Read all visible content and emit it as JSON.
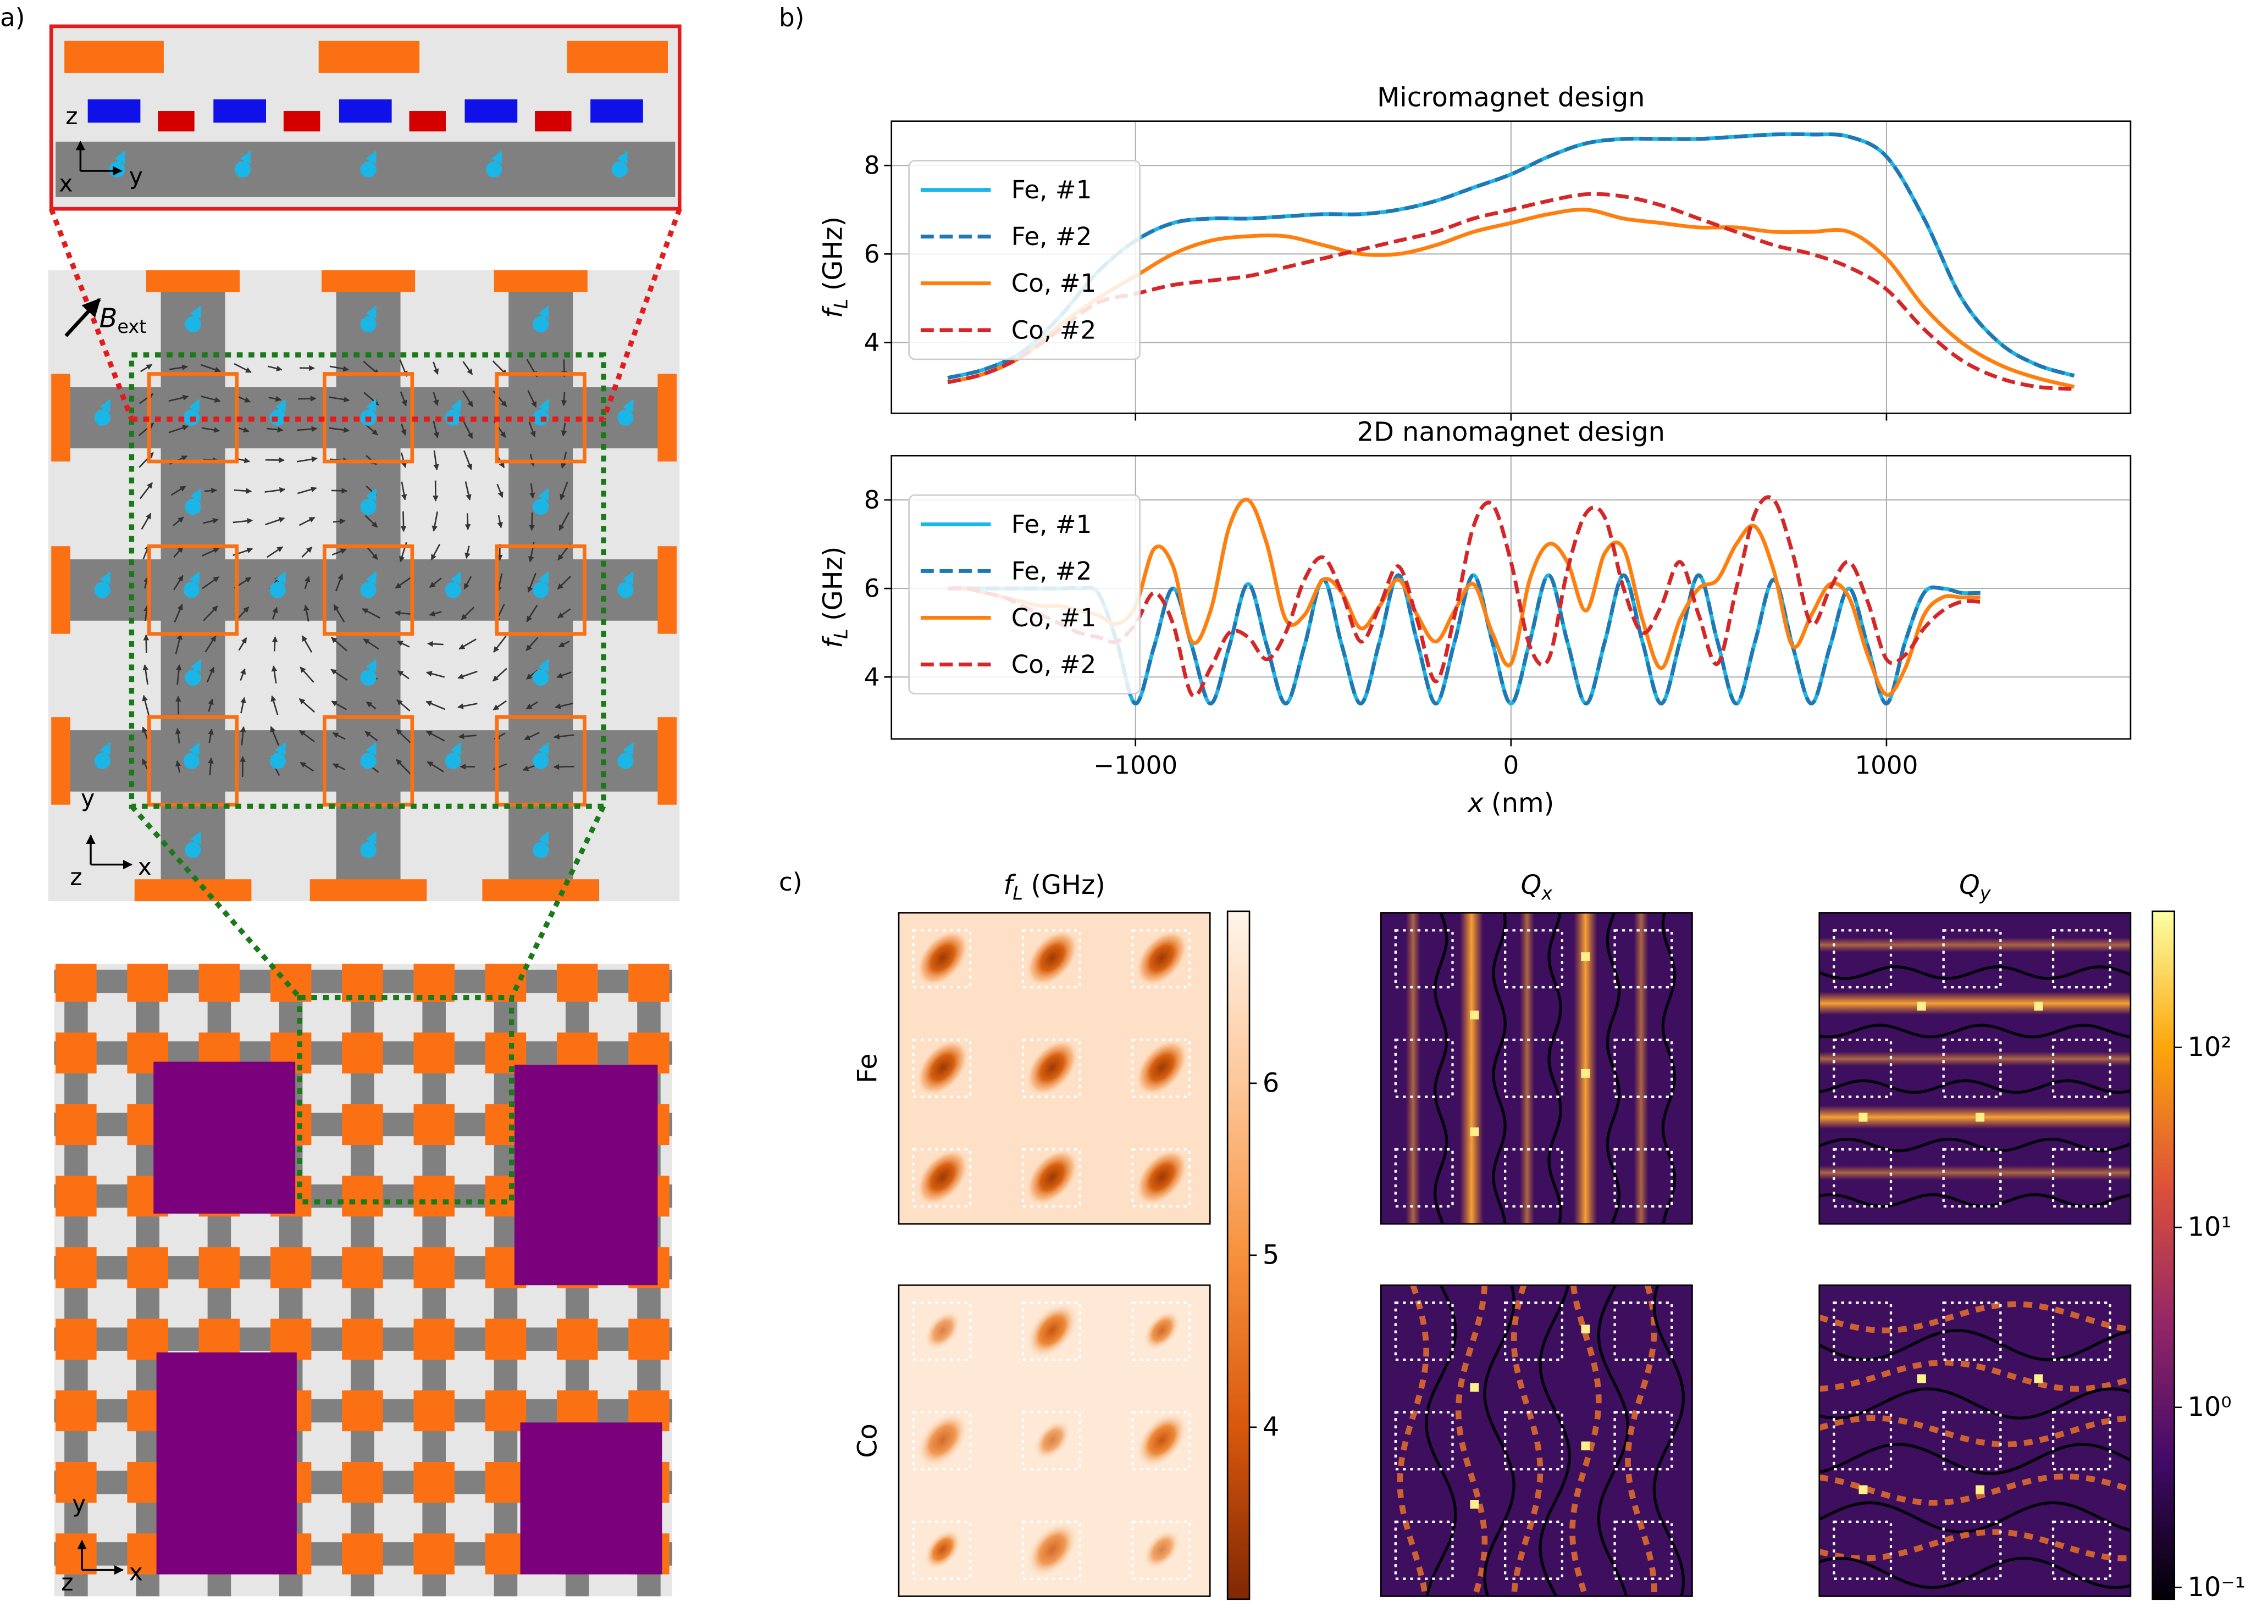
{
  "panel_labels": [
    "a)",
    "b)",
    "c)"
  ],
  "panel_a": {
    "inset_axes": [
      "z",
      "x",
      "y"
    ],
    "field": {
      "symbol": "B",
      "subscript": "ext"
    },
    "middle_axes": [
      "y",
      "z",
      "x"
    ],
    "bottom_axes": [
      "y",
      "z",
      "x"
    ]
  },
  "chart_data": [
    {
      "type": "line",
      "title": "Micromagnet design",
      "ylabel": {
        "symbol": "f",
        "subscript": "L",
        "unit": "(GHz)"
      },
      "x": [
        -1500,
        -1400,
        -1300,
        -1200,
        -1100,
        -1000,
        -900,
        -800,
        -700,
        -600,
        -500,
        -400,
        -300,
        -200,
        -100,
        0,
        100,
        200,
        300,
        400,
        500,
        600,
        700,
        800,
        900,
        1000,
        1100,
        1200,
        1300,
        1400,
        1500
      ],
      "series": [
        {
          "name": "Fe, #1",
          "color": "#1ab6e8",
          "style": "solid",
          "values": [
            3.2,
            3.4,
            3.8,
            4.6,
            5.6,
            6.3,
            6.7,
            6.8,
            6.8,
            6.85,
            6.9,
            6.9,
            7.0,
            7.2,
            7.5,
            7.8,
            8.2,
            8.5,
            8.6,
            8.6,
            8.6,
            8.65,
            8.7,
            8.7,
            8.65,
            8.2,
            6.8,
            5.0,
            4.0,
            3.5,
            3.25
          ]
        },
        {
          "name": "Fe, #2",
          "color": "#1f77b4",
          "style": "dashed",
          "values": [
            3.2,
            3.4,
            3.8,
            4.6,
            5.6,
            6.3,
            6.7,
            6.8,
            6.8,
            6.85,
            6.9,
            6.9,
            7.0,
            7.2,
            7.5,
            7.8,
            8.2,
            8.5,
            8.6,
            8.6,
            8.6,
            8.65,
            8.7,
            8.7,
            8.65,
            8.2,
            6.8,
            5.0,
            4.0,
            3.5,
            3.25
          ]
        },
        {
          "name": "Co, #1",
          "color": "#ff7f0e",
          "style": "solid",
          "values": [
            3.1,
            3.3,
            3.7,
            4.4,
            5.0,
            5.5,
            6.0,
            6.3,
            6.4,
            6.4,
            6.2,
            6.0,
            6.0,
            6.2,
            6.5,
            6.7,
            6.9,
            7.0,
            6.8,
            6.7,
            6.6,
            6.6,
            6.5,
            6.5,
            6.5,
            5.9,
            4.8,
            4.0,
            3.5,
            3.2,
            3.0
          ]
        },
        {
          "name": "Co, #2",
          "color": "#d62728",
          "style": "dashed",
          "values": [
            3.1,
            3.3,
            3.7,
            4.3,
            4.9,
            5.1,
            5.3,
            5.4,
            5.5,
            5.7,
            5.9,
            6.1,
            6.3,
            6.5,
            6.8,
            7.0,
            7.2,
            7.35,
            7.3,
            7.1,
            6.8,
            6.5,
            6.2,
            6.0,
            5.7,
            5.2,
            4.3,
            3.6,
            3.2,
            3.0,
            2.95
          ]
        }
      ],
      "xlim": [
        -1650,
        1650
      ],
      "ylim": [
        2.4,
        9.0
      ],
      "xticks": [
        -1000,
        0,
        1000
      ],
      "show_xticklabels": false,
      "yticks": [
        4,
        6,
        8
      ],
      "grid": true,
      "legend": "upper left"
    },
    {
      "type": "line",
      "title": "2D nanomagnet design",
      "ylabel": {
        "symbol": "f",
        "subscript": "L",
        "unit": "(GHz)"
      },
      "xlabel": {
        "symbol": "x",
        "unit": "(nm)"
      },
      "x": [
        -1500,
        -1450,
        -1400,
        -1350,
        -1300,
        -1250,
        -1200,
        -1150,
        -1100,
        -1050,
        -1000,
        -950,
        -900,
        -850,
        -800,
        -750,
        -700,
        -650,
        -600,
        -550,
        -500,
        -450,
        -400,
        -350,
        -300,
        -250,
        -200,
        -150,
        -100,
        -50,
        0,
        50,
        100,
        150,
        200,
        250,
        300,
        350,
        400,
        450,
        500,
        550,
        600,
        650,
        700,
        750,
        800,
        850,
        900,
        950,
        1000,
        1050,
        1100,
        1150,
        1200,
        1250
      ],
      "series": [
        {
          "name": "Fe, #1",
          "color": "#1ab6e8",
          "style": "solid",
          "values": [
            6.0,
            6.0,
            6.0,
            6.0,
            6.0,
            6.0,
            6.0,
            6.0,
            5.9,
            4.8,
            3.4,
            4.7,
            6.0,
            4.7,
            3.4,
            4.7,
            6.1,
            4.7,
            3.4,
            4.7,
            6.2,
            4.7,
            3.4,
            4.8,
            6.3,
            4.8,
            3.4,
            4.8,
            6.3,
            4.8,
            3.4,
            4.8,
            6.3,
            4.8,
            3.4,
            4.8,
            6.3,
            4.8,
            3.4,
            4.8,
            6.3,
            4.8,
            3.4,
            4.8,
            6.2,
            4.7,
            3.4,
            4.7,
            6.0,
            4.7,
            3.4,
            4.8,
            5.9,
            6.0,
            5.9,
            5.9
          ]
        },
        {
          "name": "Fe, #2",
          "color": "#1f77b4",
          "style": "dashed",
          "values": [
            6.0,
            6.0,
            6.0,
            6.0,
            6.0,
            6.0,
            6.0,
            6.0,
            5.9,
            4.8,
            3.4,
            4.7,
            6.0,
            4.7,
            3.4,
            4.7,
            6.1,
            4.7,
            3.4,
            4.7,
            6.2,
            4.7,
            3.4,
            4.8,
            6.3,
            4.8,
            3.4,
            4.8,
            6.3,
            4.8,
            3.4,
            4.8,
            6.3,
            4.8,
            3.4,
            4.8,
            6.3,
            4.8,
            3.4,
            4.8,
            6.3,
            4.8,
            3.4,
            4.8,
            6.2,
            4.7,
            3.4,
            4.7,
            6.0,
            4.7,
            3.4,
            4.8,
            5.9,
            6.0,
            5.9,
            5.9
          ]
        },
        {
          "name": "Co, #1",
          "color": "#ff7f0e",
          "style": "solid",
          "values": [
            6.0,
            6.0,
            5.9,
            5.8,
            5.7,
            5.6,
            5.6,
            5.5,
            5.4,
            5.2,
            5.6,
            6.9,
            6.5,
            4.8,
            5.5,
            7.4,
            8.0,
            7.0,
            5.3,
            5.4,
            6.2,
            5.9,
            5.1,
            5.6,
            6.2,
            5.4,
            4.8,
            5.5,
            6.1,
            5.0,
            4.3,
            6.2,
            7.0,
            6.6,
            5.5,
            6.8,
            6.9,
            5.3,
            4.2,
            5.3,
            6.0,
            6.2,
            7.0,
            7.4,
            6.4,
            4.7,
            5.4,
            6.1,
            5.8,
            4.5,
            3.6,
            4.2,
            5.4,
            5.8,
            5.8,
            5.8
          ]
        },
        {
          "name": "Co, #2",
          "color": "#d62728",
          "style": "dashed",
          "values": [
            6.0,
            6.0,
            5.9,
            5.8,
            5.6,
            5.4,
            5.2,
            5.0,
            4.9,
            4.8,
            5.2,
            5.9,
            5.2,
            3.6,
            4.2,
            5.0,
            4.9,
            4.4,
            5.0,
            6.2,
            6.7,
            5.9,
            4.8,
            5.6,
            6.5,
            5.3,
            3.9,
            5.4,
            7.4,
            7.9,
            6.6,
            4.7,
            4.4,
            6.4,
            7.7,
            7.6,
            6.0,
            5.0,
            5.6,
            6.6,
            5.4,
            4.3,
            6.0,
            7.7,
            8.0,
            6.8,
            5.2,
            6.0,
            6.6,
            5.7,
            4.4,
            4.5,
            5.1,
            5.5,
            5.7,
            5.7
          ]
        }
      ],
      "xlim": [
        -1650,
        1650
      ],
      "ylim": [
        2.6,
        9.0
      ],
      "xticks": [
        {
          "value": -1000,
          "label": "−1000"
        },
        0,
        1000
      ],
      "show_xticklabels": true,
      "yticks": [
        4,
        6,
        8
      ],
      "grid": true,
      "legend": "upper left"
    }
  ],
  "panel_c": {
    "columns": [
      {
        "symbol": "f",
        "subscript": "L",
        "unit": "(GHz)"
      },
      {
        "symbol": "Q",
        "subscript": "x"
      },
      {
        "symbol": "Q",
        "subscript": "y"
      }
    ],
    "rows": [
      "Fe",
      "Co"
    ],
    "colorbars": [
      {
        "scale": "linear",
        "ylim": [
          3.0,
          7.0
        ],
        "yticks": [
          4,
          5,
          6
        ],
        "colors": [
          "#7f2704",
          "#d9580d",
          "#f7913d",
          "#fdc79a",
          "#fff5eb"
        ]
      },
      {
        "scale": "log",
        "ylim": [
          0.086,
          570
        ],
        "yticks": [
          {
            "value": 0.1,
            "label": "10⁻¹"
          },
          {
            "value": 1,
            "label": "10⁰"
          },
          {
            "value": 10,
            "label": "10¹"
          },
          {
            "value": 100,
            "label": "10²"
          }
        ],
        "colors": [
          "#000004",
          "#420a68",
          "#932667",
          "#dd513a",
          "#fca50a",
          "#fcffa4"
        ]
      }
    ]
  }
}
